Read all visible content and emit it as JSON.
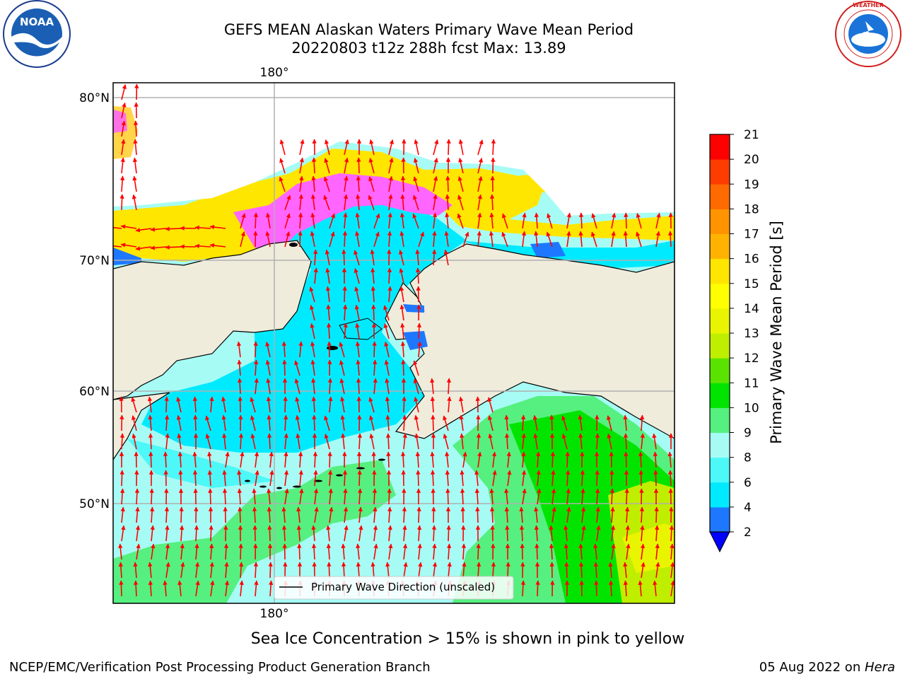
{
  "header": {
    "title_line1": "GEFS MEAN Alaskan Waters Primary Wave Mean Period",
    "title_line2": "20220803 t12z 288h fcst   Max: 13.89"
  },
  "logos": {
    "left": {
      "name": "noaa-logo",
      "text": "NOAA",
      "ring_text": "NATIONAL OCEANIC AND ATMOSPHERIC ADMINISTRATION · U.S. DEPARTMENT OF COMMERCE"
    },
    "right": {
      "name": "nws-logo",
      "ring_text": "NATIONAL WEATHER SERVICE"
    }
  },
  "map": {
    "lon_labels": [
      "180°"
    ],
    "lat_labels": [
      "80°N",
      "70°N",
      "60°N",
      "50°N"
    ],
    "colors": {
      "land": "#efecdc",
      "ice": "#ffffff",
      "arrow": "#ff0000",
      "coast": "#000000",
      "grid": "#b0b0b0"
    },
    "legend_label": "Primary Wave Direction (unscaled)"
  },
  "colorbar": {
    "title": "Primary Wave Mean Period [s]",
    "ticks": [
      "2",
      "4",
      "6",
      "8",
      "9",
      "10",
      "11",
      "12",
      "13",
      "14",
      "15",
      "16",
      "17",
      "18",
      "19",
      "20",
      "21"
    ],
    "colors": [
      "#1e78ff",
      "#00eaff",
      "#4cf8f8",
      "#a6fcf5",
      "#55f07f",
      "#00e400",
      "#5be300",
      "#bfee00",
      "#e9f400",
      "#ffff00",
      "#ffe600",
      "#ffb300",
      "#ff9400",
      "#ff6a00",
      "#ff3c00",
      "#ff0000"
    ],
    "extend_color": "#0000ff"
  },
  "ice_note": "Sea Ice Concentration > 15% is shown in pink to yellow",
  "footer": {
    "left": "NCEP/EMC/Verification Post Processing Product Generation Branch",
    "right_date": "05 Aug 2022 on ",
    "right_host": "Hera"
  }
}
